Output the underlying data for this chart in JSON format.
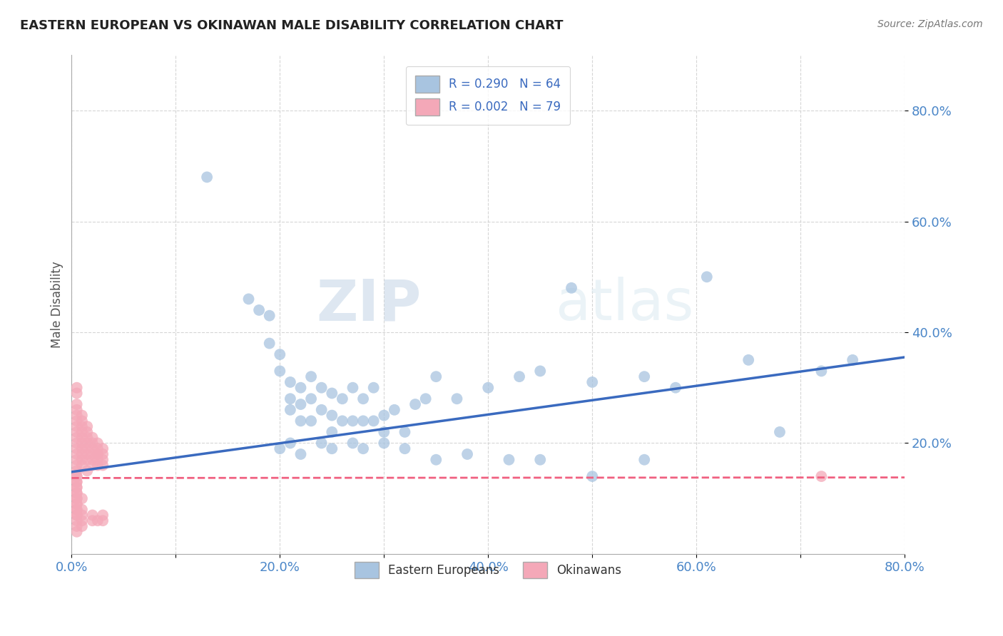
{
  "title": "EASTERN EUROPEAN VS OKINAWAN MALE DISABILITY CORRELATION CHART",
  "source": "Source: ZipAtlas.com",
  "ylabel": "Male Disability",
  "xlim": [
    0.0,
    0.8
  ],
  "ylim": [
    0.0,
    0.9
  ],
  "xtick_labels": [
    "0.0%",
    "",
    "20.0%",
    "",
    "40.0%",
    "",
    "60.0%",
    "",
    "80.0%"
  ],
  "xtick_vals": [
    0.0,
    0.1,
    0.2,
    0.3,
    0.4,
    0.5,
    0.6,
    0.7,
    0.8
  ],
  "ytick_labels": [
    "80.0%",
    "60.0%",
    "40.0%",
    "20.0%"
  ],
  "ytick_vals": [
    0.8,
    0.6,
    0.4,
    0.2
  ],
  "blue_R": 0.29,
  "blue_N": 64,
  "pink_R": 0.002,
  "pink_N": 79,
  "blue_color": "#a8c4e0",
  "pink_color": "#f4a8b8",
  "blue_line_color": "#3a6abf",
  "pink_line_color": "#f06080",
  "tick_color": "#4a86c8",
  "blue_scatter_x": [
    0.13,
    0.17,
    0.18,
    0.19,
    0.19,
    0.2,
    0.2,
    0.21,
    0.21,
    0.21,
    0.22,
    0.22,
    0.22,
    0.23,
    0.23,
    0.23,
    0.24,
    0.24,
    0.25,
    0.25,
    0.25,
    0.26,
    0.26,
    0.27,
    0.27,
    0.28,
    0.28,
    0.29,
    0.29,
    0.3,
    0.3,
    0.31,
    0.32,
    0.33,
    0.34,
    0.35,
    0.37,
    0.4,
    0.43,
    0.45,
    0.48,
    0.5,
    0.55,
    0.58,
    0.61,
    0.65,
    0.68,
    0.72,
    0.75,
    0.2,
    0.21,
    0.22,
    0.24,
    0.25,
    0.27,
    0.28,
    0.3,
    0.32,
    0.35,
    0.38,
    0.42,
    0.45,
    0.5,
    0.55
  ],
  "blue_scatter_y": [
    0.68,
    0.46,
    0.44,
    0.43,
    0.38,
    0.36,
    0.33,
    0.31,
    0.28,
    0.26,
    0.3,
    0.27,
    0.24,
    0.32,
    0.28,
    0.24,
    0.3,
    0.26,
    0.29,
    0.25,
    0.22,
    0.28,
    0.24,
    0.3,
    0.24,
    0.28,
    0.24,
    0.3,
    0.24,
    0.22,
    0.25,
    0.26,
    0.22,
    0.27,
    0.28,
    0.32,
    0.28,
    0.3,
    0.32,
    0.33,
    0.48,
    0.31,
    0.32,
    0.3,
    0.5,
    0.35,
    0.22,
    0.33,
    0.35,
    0.19,
    0.2,
    0.18,
    0.2,
    0.19,
    0.2,
    0.19,
    0.2,
    0.19,
    0.17,
    0.18,
    0.17,
    0.17,
    0.14,
    0.17
  ],
  "pink_scatter_x": [
    0.005,
    0.005,
    0.005,
    0.005,
    0.005,
    0.005,
    0.005,
    0.005,
    0.005,
    0.005,
    0.005,
    0.005,
    0.01,
    0.01,
    0.01,
    0.01,
    0.01,
    0.01,
    0.01,
    0.01,
    0.01,
    0.01,
    0.015,
    0.015,
    0.015,
    0.015,
    0.015,
    0.015,
    0.015,
    0.015,
    0.02,
    0.02,
    0.02,
    0.02,
    0.02,
    0.02,
    0.025,
    0.025,
    0.025,
    0.025,
    0.025,
    0.025,
    0.03,
    0.03,
    0.03,
    0.03,
    0.005,
    0.005,
    0.005,
    0.005,
    0.005,
    0.005,
    0.005,
    0.005,
    0.005,
    0.005,
    0.005,
    0.01,
    0.01,
    0.01,
    0.01,
    0.01,
    0.02,
    0.02,
    0.025,
    0.03,
    0.03,
    0.005,
    0.72,
    0.005,
    0.005,
    0.005,
    0.005,
    0.005,
    0.005,
    0.005,
    0.005,
    0.005,
    0.005
  ],
  "pink_scatter_y": [
    0.17,
    0.19,
    0.21,
    0.23,
    0.25,
    0.27,
    0.29,
    0.18,
    0.2,
    0.22,
    0.24,
    0.26,
    0.17,
    0.19,
    0.21,
    0.23,
    0.25,
    0.18,
    0.2,
    0.22,
    0.24,
    0.16,
    0.18,
    0.2,
    0.22,
    0.17,
    0.19,
    0.21,
    0.23,
    0.15,
    0.17,
    0.19,
    0.21,
    0.18,
    0.2,
    0.16,
    0.18,
    0.2,
    0.17,
    0.19,
    0.16,
    0.18,
    0.17,
    0.19,
    0.16,
    0.18,
    0.1,
    0.11,
    0.12,
    0.13,
    0.14,
    0.08,
    0.09,
    0.07,
    0.06,
    0.05,
    0.04,
    0.08,
    0.1,
    0.06,
    0.07,
    0.05,
    0.06,
    0.07,
    0.06,
    0.07,
    0.06,
    0.3,
    0.14,
    0.15,
    0.16,
    0.13,
    0.14,
    0.12,
    0.11,
    0.1,
    0.09,
    0.08,
    0.07
  ],
  "blue_line_x0": 0.0,
  "blue_line_y0": 0.148,
  "blue_line_x1": 0.8,
  "blue_line_y1": 0.355,
  "pink_line_x0": 0.0,
  "pink_line_y0": 0.137,
  "pink_line_x1": 0.8,
  "pink_line_y1": 0.138,
  "watermark_zip": "ZIP",
  "watermark_atlas": "atlas",
  "bg_color": "#ffffff",
  "grid_color": "#cccccc"
}
